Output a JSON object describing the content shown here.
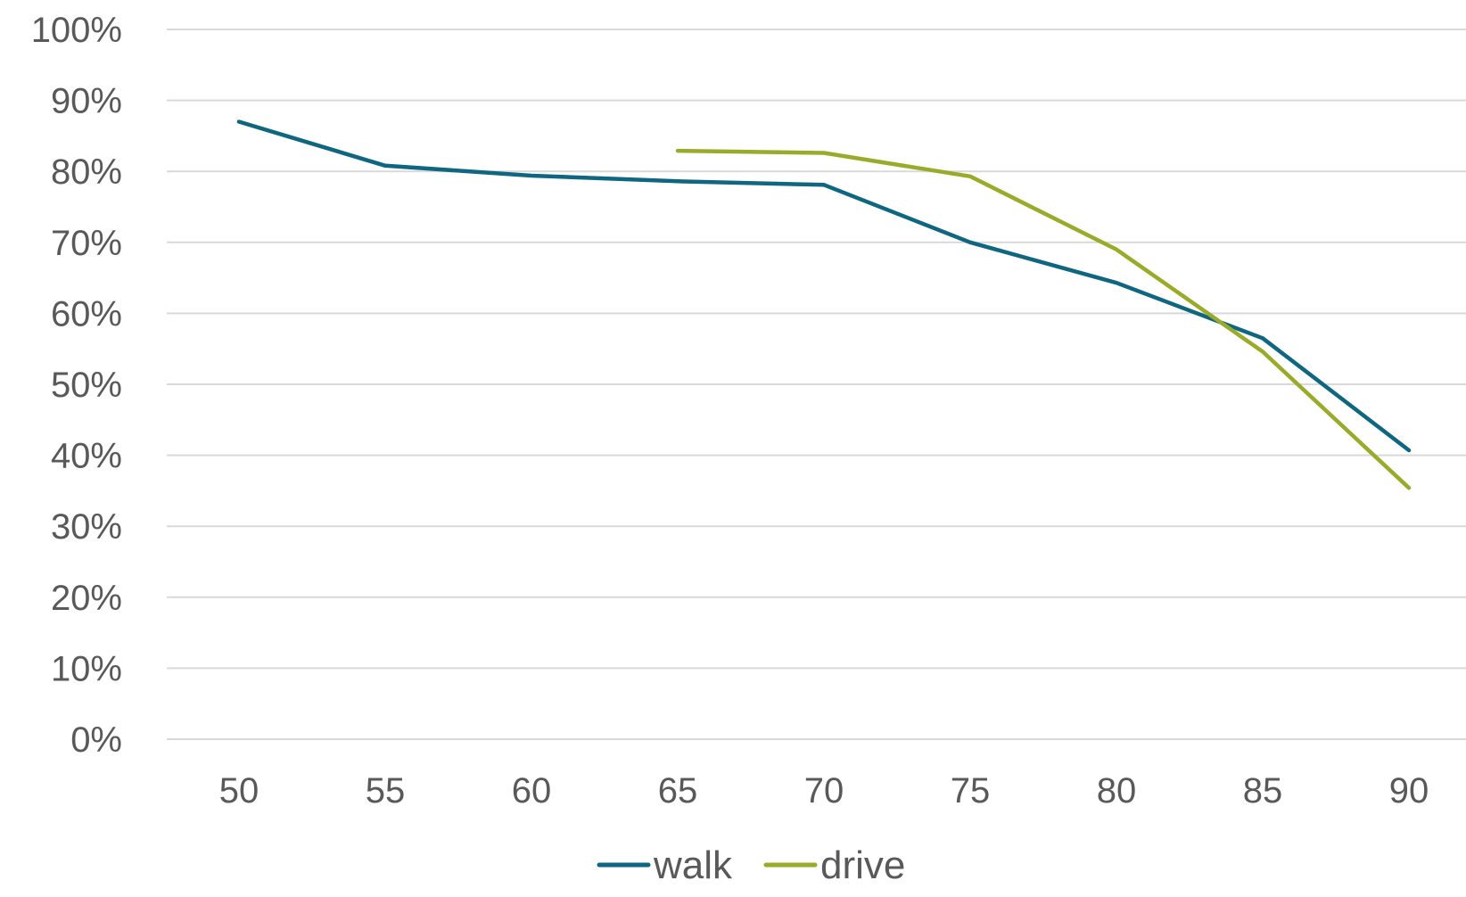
{
  "chart_data": {
    "type": "line",
    "title": "",
    "xlabel": "",
    "ylabel": "",
    "x": [
      50,
      55,
      60,
      65,
      70,
      75,
      80,
      85,
      90
    ],
    "x_tick_labels": [
      "50",
      "55",
      "60",
      "65",
      "70",
      "75",
      "80",
      "85",
      "90"
    ],
    "y_tick_labels": [
      "0%",
      "10%",
      "20%",
      "30%",
      "40%",
      "50%",
      "60%",
      "70%",
      "80%",
      "90%",
      "100%"
    ],
    "ylim": [
      0,
      100
    ],
    "y_unit": "%",
    "grid": true,
    "legend_position": "bottom",
    "series": [
      {
        "name": "walk",
        "color": "#0e6680",
        "values": [
          87,
          80.8,
          79.4,
          78.6,
          78.1,
          70,
          64.3,
          56.5,
          40.7
        ]
      },
      {
        "name": "drive",
        "color": "#9aab2a",
        "values": [
          null,
          null,
          null,
          82.9,
          82.6,
          79.3,
          69,
          null,
          35.4
        ],
        "extra_points": []
      }
    ]
  }
}
